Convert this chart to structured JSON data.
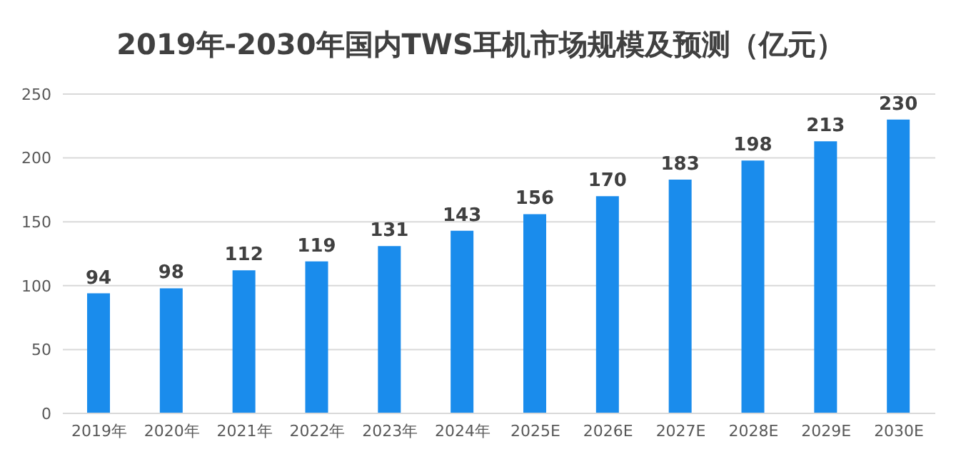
{
  "chart_data": {
    "type": "bar",
    "title": "2019年-2030年国内TWS耳机市场规模及预测（亿元）",
    "categories": [
      "2019年",
      "2020年",
      "2021年",
      "2022年",
      "2023年",
      "2024年",
      "2025E",
      "2026E",
      "2027E",
      "2028E",
      "2029E",
      "2030E"
    ],
    "values": [
      94,
      98,
      112,
      119,
      131,
      143,
      156,
      170,
      183,
      198,
      213,
      230
    ],
    "color": "#1a8cec",
    "ylim": [
      0,
      250
    ],
    "yticks": [
      0,
      50,
      100,
      150,
      200,
      250
    ],
    "grid": "y",
    "data_labels": true
  }
}
